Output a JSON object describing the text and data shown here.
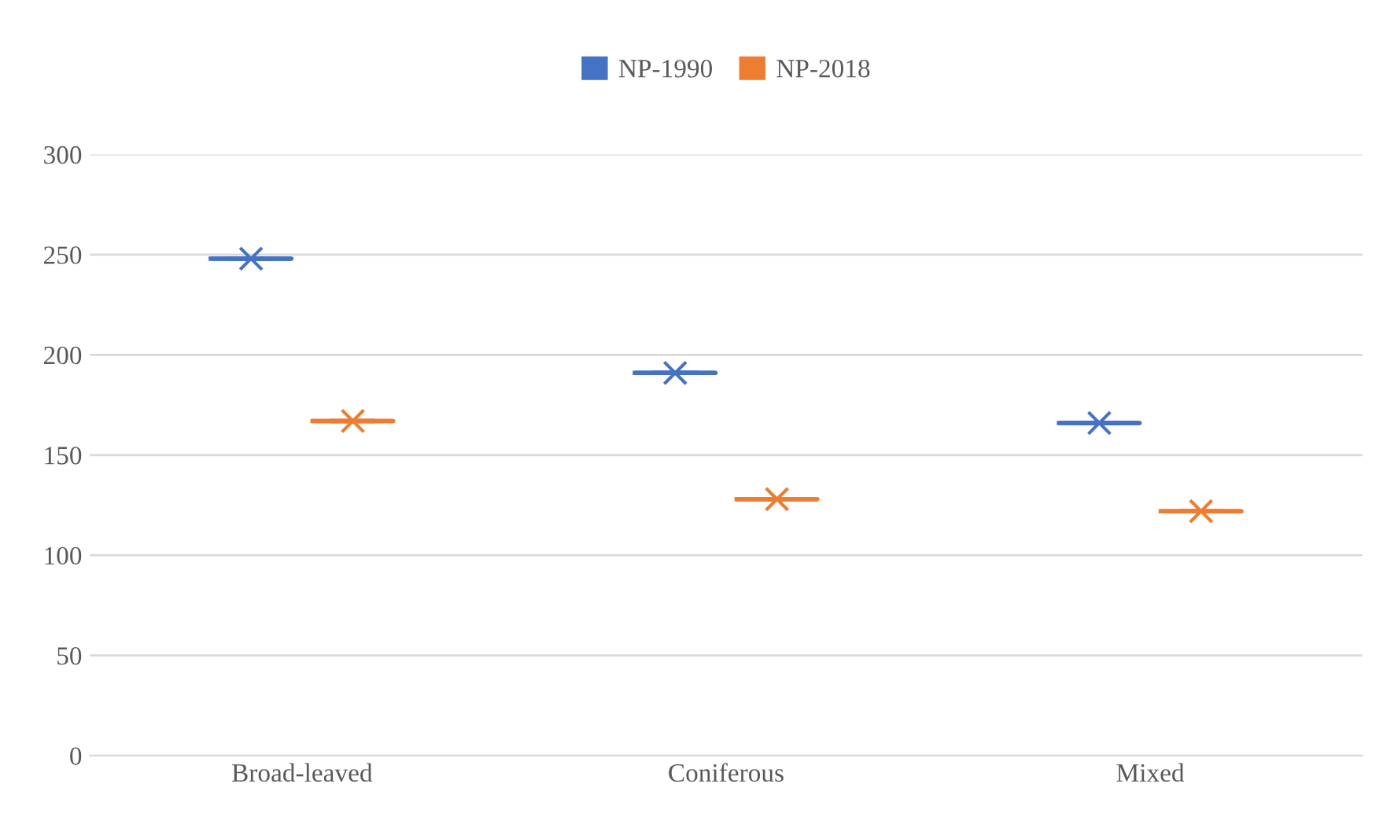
{
  "chart_data": {
    "type": "box",
    "categories": [
      "Broad-leaved",
      "Coniferous",
      "Mixed"
    ],
    "series": [
      {
        "name": "NP-1990",
        "color": "#4472c4",
        "boxes": [
          {
            "low": 248,
            "q1": 248,
            "median": 248,
            "q3": 248,
            "high": 248,
            "mean": 248
          },
          {
            "low": 191,
            "q1": 191,
            "median": 191,
            "q3": 191,
            "high": 191,
            "mean": 191
          },
          {
            "low": 166,
            "q1": 166,
            "median": 166,
            "q3": 166,
            "high": 166,
            "mean": 166
          }
        ]
      },
      {
        "name": "NP-2018",
        "color": "#ed7d31",
        "boxes": [
          {
            "low": 167,
            "q1": 167,
            "median": 167,
            "q3": 167,
            "high": 167,
            "mean": 167
          },
          {
            "low": 128,
            "q1": 128,
            "median": 128,
            "q3": 128,
            "high": 128,
            "mean": 128
          },
          {
            "low": 122,
            "q1": 122,
            "median": 122,
            "q3": 122,
            "high": 122,
            "mean": 122
          }
        ]
      }
    ],
    "ylim": [
      0,
      300
    ],
    "yticks": [
      0,
      50,
      100,
      150,
      200,
      250,
      300
    ],
    "grid": "y",
    "legend": "top",
    "marker": "cross"
  }
}
